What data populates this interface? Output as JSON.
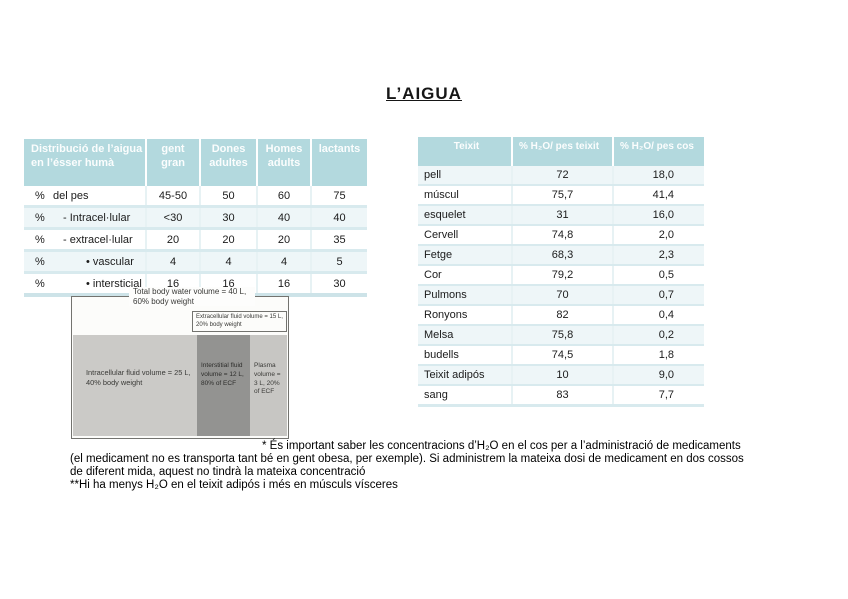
{
  "title": "L’AIGUA",
  "colors": {
    "table_header_bg": "#b3d9de",
    "table_row_alt": "#eef6f8",
    "row_separator": "#d8eaee"
  },
  "left_table": {
    "headers": [
      "Distribució de l’aigua en l’ésser humà",
      "gent gran",
      "Dones adultes",
      "Homes adults",
      "lactants"
    ],
    "rows": [
      {
        "pct": "%",
        "label": "del pes",
        "indent": 1,
        "values": [
          "45-50",
          "50",
          "60",
          "75"
        ]
      },
      {
        "pct": "%",
        "label": "- Intracel·lular",
        "indent": 2,
        "values": [
          "<30",
          "30",
          "40",
          "40"
        ]
      },
      {
        "pct": "%",
        "label": "- extracel·lular",
        "indent": 2,
        "values": [
          "20",
          "20",
          "20",
          "35"
        ]
      },
      {
        "pct": "%",
        "label": "• vascular",
        "indent": 3,
        "values": [
          "4",
          "4",
          "4",
          "5"
        ]
      },
      {
        "pct": "%",
        "label": "• intersticial",
        "indent": 3,
        "values": [
          "16",
          "16",
          "16",
          "30"
        ]
      }
    ]
  },
  "right_table": {
    "headers": [
      "Teixit",
      "% H₂O/ pes teixit",
      "% H₂O/ pes cos"
    ],
    "rows": [
      [
        "pell",
        "72",
        "18,0"
      ],
      [
        "múscul",
        "75,7",
        "41,4"
      ],
      [
        "esquelet",
        "31",
        "16,0"
      ],
      [
        "Cervell",
        "74,8",
        "2,0"
      ],
      [
        "Fetge",
        "68,3",
        "2,3"
      ],
      [
        "Cor",
        "79,2",
        "0,5"
      ],
      [
        "Pulmons",
        "70",
        "0,7"
      ],
      [
        "Ronyons",
        "82",
        "0,4"
      ],
      [
        "Melsa",
        "75,8",
        "0,2"
      ],
      [
        "budells",
        "74,5",
        "1,8"
      ],
      [
        "Teixit adipós",
        "10",
        "9,0"
      ],
      [
        "sang",
        "83",
        "7,7"
      ]
    ]
  },
  "diagram": {
    "total_label": "Total body water volume = 40 L, 60% body weight",
    "ecf_label": "Extracellular fluid volume = 15 L, 20% body weight",
    "icf_label": "Intracellular fluid volume = 25 L, 40% body weight",
    "interstitial_label": "Interstitial fluid volume = 12 L, 80% of ECF",
    "plasma_label": "Plasma volume = 3 L, 20% of ECF"
  },
  "notes": {
    "note1": "* És important saber les concentracions d’H₂O en el cos per a l’administració de medicaments (el medicament no es transporta tant bé en gent obesa, per exemple). Si administrem la  mateixa dosi de medicament en dos cossos de diferent mida, aquest no tindrà la mateixa concentració",
    "note2": "**Hi ha menys H₂O en el teixit adipós i més en músculs vísceres"
  }
}
